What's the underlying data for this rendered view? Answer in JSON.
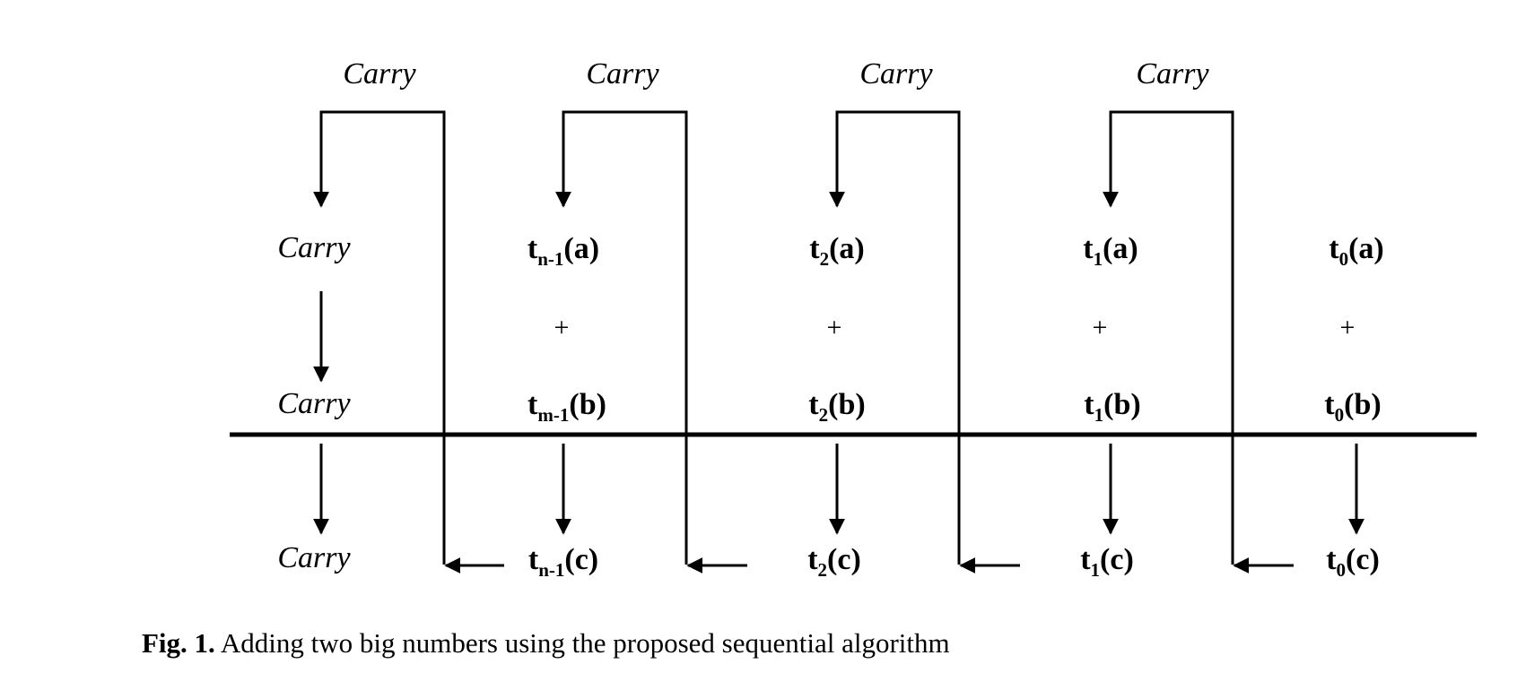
{
  "figure": {
    "carry_label": "Carry",
    "plus_sign": "+",
    "top_carries": [
      "Carry",
      "Carry",
      "Carry",
      "Carry"
    ],
    "columns": [
      {
        "id": "n-1",
        "a": {
          "base": "t",
          "sub": "n-1",
          "arg": "(a)"
        },
        "b": {
          "base": "t",
          "sub": "m-1",
          "arg": "(b)"
        },
        "c": {
          "base": "t",
          "sub": "n-1",
          "arg": "(c)"
        }
      },
      {
        "id": "2",
        "a": {
          "base": "t",
          "sub": "2",
          "arg": "(a)"
        },
        "b": {
          "base": "t",
          "sub": "2",
          "arg": "(b)"
        },
        "c": {
          "base": "t",
          "sub": "2",
          "arg": "(c)"
        }
      },
      {
        "id": "1",
        "a": {
          "base": "t",
          "sub": "1",
          "arg": "(a)"
        },
        "b": {
          "base": "t",
          "sub": "1",
          "arg": "(b)"
        },
        "c": {
          "base": "t",
          "sub": "1",
          "arg": "(c)"
        }
      },
      {
        "id": "0",
        "a": {
          "base": "t",
          "sub": "0",
          "arg": "(a)"
        },
        "b": {
          "base": "t",
          "sub": "0",
          "arg": "(b)"
        },
        "c": {
          "base": "t",
          "sub": "0",
          "arg": "(c)"
        }
      }
    ]
  },
  "caption": {
    "label": "Fig. 1.",
    "text": " Adding two big numbers using the proposed sequential algorithm"
  }
}
